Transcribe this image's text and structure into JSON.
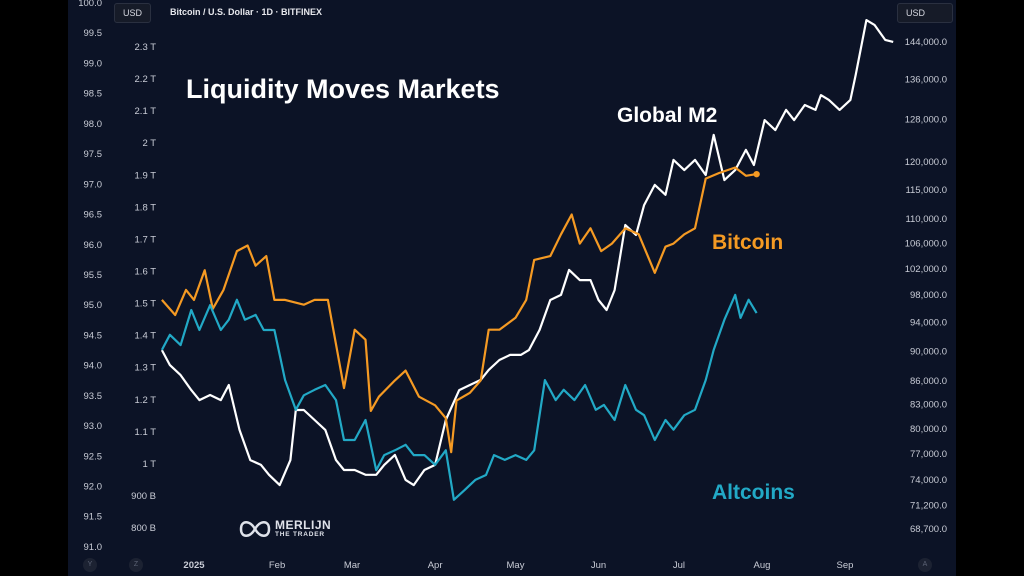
{
  "header": {
    "symbol_title": "Bitcoin / U.S. Dollar · 1D · BITFINEX",
    "currency_left": "USD",
    "currency_right": "USD"
  },
  "annotations": {
    "title": "Liquidity Moves Markets",
    "global_m2": "Global M2",
    "bitcoin": "Bitcoin",
    "altcoins": "Altcoins"
  },
  "watermark": {
    "line1": "MERLIJN",
    "line2": "THE TRADER"
  },
  "corner_buttons": {
    "y": "Y",
    "z": "Z",
    "a": "A"
  },
  "colors": {
    "background": "#0c1326",
    "bitcoin": "#f59a23",
    "global_m2": "#ffffff",
    "altcoins": "#22a9c6"
  },
  "chart_data": {
    "type": "line",
    "title": "Liquidity Moves Markets",
    "x_tick_labels": [
      "2025",
      "Feb",
      "Mar",
      "Apr",
      "May",
      "Jun",
      "Jul",
      "Aug",
      "Sep"
    ],
    "x_tick_dates": [
      "2025-01-01",
      "2025-02-01",
      "2025-03-01",
      "2025-04-01",
      "2025-05-01",
      "2025-06-01",
      "2025-07-01",
      "2025-08-01",
      "2025-09-01"
    ],
    "axes": {
      "left_outer": {
        "scale": "linear",
        "range": [
          91.0,
          100.0
        ],
        "ticks": [
          "100.0",
          "99.5",
          "99.0",
          "98.5",
          "98.0",
          "97.5",
          "97.0",
          "96.5",
          "96.0",
          "95.5",
          "95.0",
          "94.5",
          "94.0",
          "93.5",
          "93.0",
          "92.5",
          "92.0",
          "91.5",
          "91.0"
        ]
      },
      "left_inner": {
        "scale": "linear",
        "unit": "T",
        "range": [
          0.8,
          2.3
        ],
        "ticks": [
          "2.3 T",
          "2.2 T",
          "2.1 T",
          "2 T",
          "1.9 T",
          "1.8 T",
          "1.7 T",
          "1.6 T",
          "1.5 T",
          "1.4 T",
          "1.3 T",
          "1.2 T",
          "1.1 T",
          "1 T",
          "900 B",
          "800 B"
        ]
      },
      "right": {
        "scale": "log",
        "range": [
          68700,
          144000
        ],
        "ticks": [
          "144,000.0",
          "136,000.0",
          "128,000.0",
          "120,000.0",
          "115,000.0",
          "110,000.0",
          "106,000.0",
          "102,000.0",
          "98,000.0",
          "94,000.0",
          "90,000.0",
          "86,000.0",
          "83,000.0",
          "80,000.0",
          "77,000.0",
          "74,000.0",
          "71,200.0",
          "68,700.0"
        ]
      }
    },
    "series": [
      {
        "name": "Global M2",
        "axis": "left_inner",
        "color": "#ffffff",
        "points": [
          [
            "2024-12-20",
            1.355
          ],
          [
            "2024-12-23",
            1.308
          ],
          [
            "2024-12-27",
            1.277
          ],
          [
            "2024-12-31",
            1.23
          ],
          [
            "2025-01-03",
            1.199
          ],
          [
            "2025-01-07",
            1.215
          ],
          [
            "2025-01-11",
            1.199
          ],
          [
            "2025-01-14",
            1.246
          ],
          [
            "2025-01-18",
            1.106
          ],
          [
            "2025-01-22",
            1.012
          ],
          [
            "2025-01-26",
            0.997
          ],
          [
            "2025-01-29",
            0.966
          ],
          [
            "2025-02-02",
            0.934
          ],
          [
            "2025-02-06",
            1.012
          ],
          [
            "2025-02-08",
            1.168
          ],
          [
            "2025-02-11",
            1.168
          ],
          [
            "2025-02-15",
            1.137
          ],
          [
            "2025-02-19",
            1.106
          ],
          [
            "2025-02-23",
            1.012
          ],
          [
            "2025-02-26",
            0.981
          ],
          [
            "2025-03-02",
            0.981
          ],
          [
            "2025-03-06",
            0.966
          ],
          [
            "2025-03-10",
            0.966
          ],
          [
            "2025-03-13",
            0.997
          ],
          [
            "2025-03-17",
            1.028
          ],
          [
            "2025-03-21",
            0.95
          ],
          [
            "2025-03-24",
            0.934
          ],
          [
            "2025-03-28",
            0.981
          ],
          [
            "2025-04-01",
            0.997
          ],
          [
            "2025-04-05",
            1.137
          ],
          [
            "2025-04-10",
            1.23
          ],
          [
            "2025-04-14",
            1.246
          ],
          [
            "2025-04-18",
            1.262
          ],
          [
            "2025-04-21",
            1.293
          ],
          [
            "2025-04-25",
            1.324
          ],
          [
            "2025-04-29",
            1.34
          ],
          [
            "2025-05-03",
            1.34
          ],
          [
            "2025-05-06",
            1.355
          ],
          [
            "2025-05-10",
            1.418
          ],
          [
            "2025-05-14",
            1.511
          ],
          [
            "2025-05-18",
            1.527
          ],
          [
            "2025-05-21",
            1.605
          ],
          [
            "2025-05-25",
            1.573
          ],
          [
            "2025-05-29",
            1.573
          ],
          [
            "2025-06-01",
            1.511
          ],
          [
            "2025-06-04",
            1.48
          ],
          [
            "2025-06-07",
            1.542
          ],
          [
            "2025-06-11",
            1.745
          ],
          [
            "2025-06-15",
            1.714
          ],
          [
            "2025-06-18",
            1.807
          ],
          [
            "2025-06-22",
            1.87
          ],
          [
            "2025-06-26",
            1.839
          ],
          [
            "2025-06-29",
            1.948
          ],
          [
            "2025-07-03",
            1.916
          ],
          [
            "2025-07-07",
            1.948
          ],
          [
            "2025-07-11",
            1.901
          ],
          [
            "2025-07-14",
            2.026
          ],
          [
            "2025-07-18",
            1.885
          ],
          [
            "2025-07-22",
            1.916
          ],
          [
            "2025-07-26",
            1.979
          ],
          [
            "2025-07-29",
            1.932
          ],
          [
            "2025-08-02",
            2.072
          ],
          [
            "2025-08-06",
            2.041
          ],
          [
            "2025-08-10",
            2.104
          ],
          [
            "2025-08-13",
            2.072
          ],
          [
            "2025-08-17",
            2.119
          ],
          [
            "2025-08-21",
            2.104
          ],
          [
            "2025-08-23",
            2.15
          ],
          [
            "2025-08-26",
            2.135
          ],
          [
            "2025-08-30",
            2.104
          ],
          [
            "2025-09-03",
            2.135
          ],
          [
            "2025-09-05",
            2.213
          ],
          [
            "2025-09-09",
            2.384
          ],
          [
            "2025-09-12",
            2.369
          ],
          [
            "2025-09-16",
            2.322
          ],
          [
            "2025-09-19",
            2.316
          ]
        ]
      },
      {
        "name": "Bitcoin",
        "axis": "right",
        "color": "#f59a23",
        "points": [
          [
            "2024-12-20",
            97300
          ],
          [
            "2024-12-25",
            95100
          ],
          [
            "2024-12-29",
            98800
          ],
          [
            "2025-01-01",
            97300
          ],
          [
            "2025-01-05",
            101800
          ],
          [
            "2025-01-08",
            96000
          ],
          [
            "2025-01-12",
            98800
          ],
          [
            "2025-01-17",
            104800
          ],
          [
            "2025-01-21",
            105700
          ],
          [
            "2025-01-24",
            102500
          ],
          [
            "2025-01-28",
            104000
          ],
          [
            "2025-01-31",
            97300
          ],
          [
            "2025-02-04",
            97300
          ],
          [
            "2025-02-11",
            96600
          ],
          [
            "2025-02-15",
            97300
          ],
          [
            "2025-02-20",
            97300
          ],
          [
            "2025-02-26",
            85100
          ],
          [
            "2025-03-02",
            93000
          ],
          [
            "2025-03-06",
            91600
          ],
          [
            "2025-03-08",
            82200
          ],
          [
            "2025-03-11",
            84000
          ],
          [
            "2025-03-17",
            86100
          ],
          [
            "2025-03-21",
            87400
          ],
          [
            "2025-03-26",
            84000
          ],
          [
            "2025-04-01",
            82900
          ],
          [
            "2025-04-05",
            81300
          ],
          [
            "2025-04-07",
            77200
          ],
          [
            "2025-04-09",
            83500
          ],
          [
            "2025-04-14",
            84500
          ],
          [
            "2025-04-18",
            86100
          ],
          [
            "2025-04-21",
            93000
          ],
          [
            "2025-04-25",
            93000
          ],
          [
            "2025-05-01",
            94700
          ],
          [
            "2025-05-05",
            97300
          ],
          [
            "2025-05-08",
            103400
          ],
          [
            "2025-05-14",
            104000
          ],
          [
            "2025-05-18",
            107500
          ],
          [
            "2025-05-22",
            110800
          ],
          [
            "2025-05-25",
            106000
          ],
          [
            "2025-05-29",
            108500
          ],
          [
            "2025-06-02",
            104800
          ],
          [
            "2025-06-06",
            106000
          ],
          [
            "2025-06-11",
            108500
          ],
          [
            "2025-06-16",
            107500
          ],
          [
            "2025-06-22",
            101400
          ],
          [
            "2025-06-26",
            105500
          ],
          [
            "2025-06-29",
            106000
          ],
          [
            "2025-07-03",
            107500
          ],
          [
            "2025-07-07",
            108500
          ],
          [
            "2025-07-11",
            117000
          ],
          [
            "2025-07-16",
            118000
          ],
          [
            "2025-07-22",
            119000
          ],
          [
            "2025-07-26",
            117500
          ],
          [
            "2025-07-30",
            117800
          ]
        ]
      },
      {
        "name": "Altcoins",
        "axis": "left_outer",
        "color": "#22a9c6",
        "points": [
          [
            "2024-12-20",
            94.26
          ],
          [
            "2024-12-23",
            94.51
          ],
          [
            "2024-12-27",
            94.34
          ],
          [
            "2024-12-31",
            94.92
          ],
          [
            "2025-01-03",
            94.59
          ],
          [
            "2025-01-07",
            95.0
          ],
          [
            "2025-01-11",
            94.59
          ],
          [
            "2025-01-14",
            94.76
          ],
          [
            "2025-01-17",
            95.09
          ],
          [
            "2025-01-20",
            94.76
          ],
          [
            "2025-01-24",
            94.84
          ],
          [
            "2025-01-27",
            94.59
          ],
          [
            "2025-01-31",
            94.59
          ],
          [
            "2025-02-04",
            93.76
          ],
          [
            "2025-02-08",
            93.27
          ],
          [
            "2025-02-11",
            93.51
          ],
          [
            "2025-02-15",
            93.6
          ],
          [
            "2025-02-19",
            93.68
          ],
          [
            "2025-02-23",
            93.43
          ],
          [
            "2025-02-26",
            92.77
          ],
          [
            "2025-03-02",
            92.77
          ],
          [
            "2025-03-06",
            93.1
          ],
          [
            "2025-03-10",
            92.27
          ],
          [
            "2025-03-13",
            92.52
          ],
          [
            "2025-03-17",
            92.6
          ],
          [
            "2025-03-21",
            92.69
          ],
          [
            "2025-03-24",
            92.52
          ],
          [
            "2025-03-28",
            92.52
          ],
          [
            "2025-04-01",
            92.36
          ],
          [
            "2025-04-05",
            92.6
          ],
          [
            "2025-04-08",
            91.78
          ],
          [
            "2025-04-12",
            91.94
          ],
          [
            "2025-04-16",
            92.11
          ],
          [
            "2025-04-20",
            92.19
          ],
          [
            "2025-04-23",
            92.52
          ],
          [
            "2025-04-27",
            92.44
          ],
          [
            "2025-05-01",
            92.52
          ],
          [
            "2025-05-05",
            92.44
          ],
          [
            "2025-05-08",
            92.6
          ],
          [
            "2025-05-12",
            93.76
          ],
          [
            "2025-05-16",
            93.43
          ],
          [
            "2025-05-19",
            93.6
          ],
          [
            "2025-05-23",
            93.43
          ],
          [
            "2025-05-27",
            93.68
          ],
          [
            "2025-05-31",
            93.27
          ],
          [
            "2025-06-03",
            93.35
          ],
          [
            "2025-06-07",
            93.1
          ],
          [
            "2025-06-11",
            93.68
          ],
          [
            "2025-06-15",
            93.27
          ],
          [
            "2025-06-18",
            93.18
          ],
          [
            "2025-06-22",
            92.77
          ],
          [
            "2025-06-26",
            93.1
          ],
          [
            "2025-06-29",
            92.94
          ],
          [
            "2025-07-03",
            93.18
          ],
          [
            "2025-07-07",
            93.27
          ],
          [
            "2025-07-11",
            93.76
          ],
          [
            "2025-07-14",
            94.26
          ],
          [
            "2025-07-18",
            94.76
          ],
          [
            "2025-07-22",
            95.17
          ],
          [
            "2025-07-24",
            94.79
          ],
          [
            "2025-07-27",
            95.09
          ],
          [
            "2025-07-30",
            94.87
          ]
        ]
      }
    ],
    "grid": false,
    "legend": "none"
  }
}
